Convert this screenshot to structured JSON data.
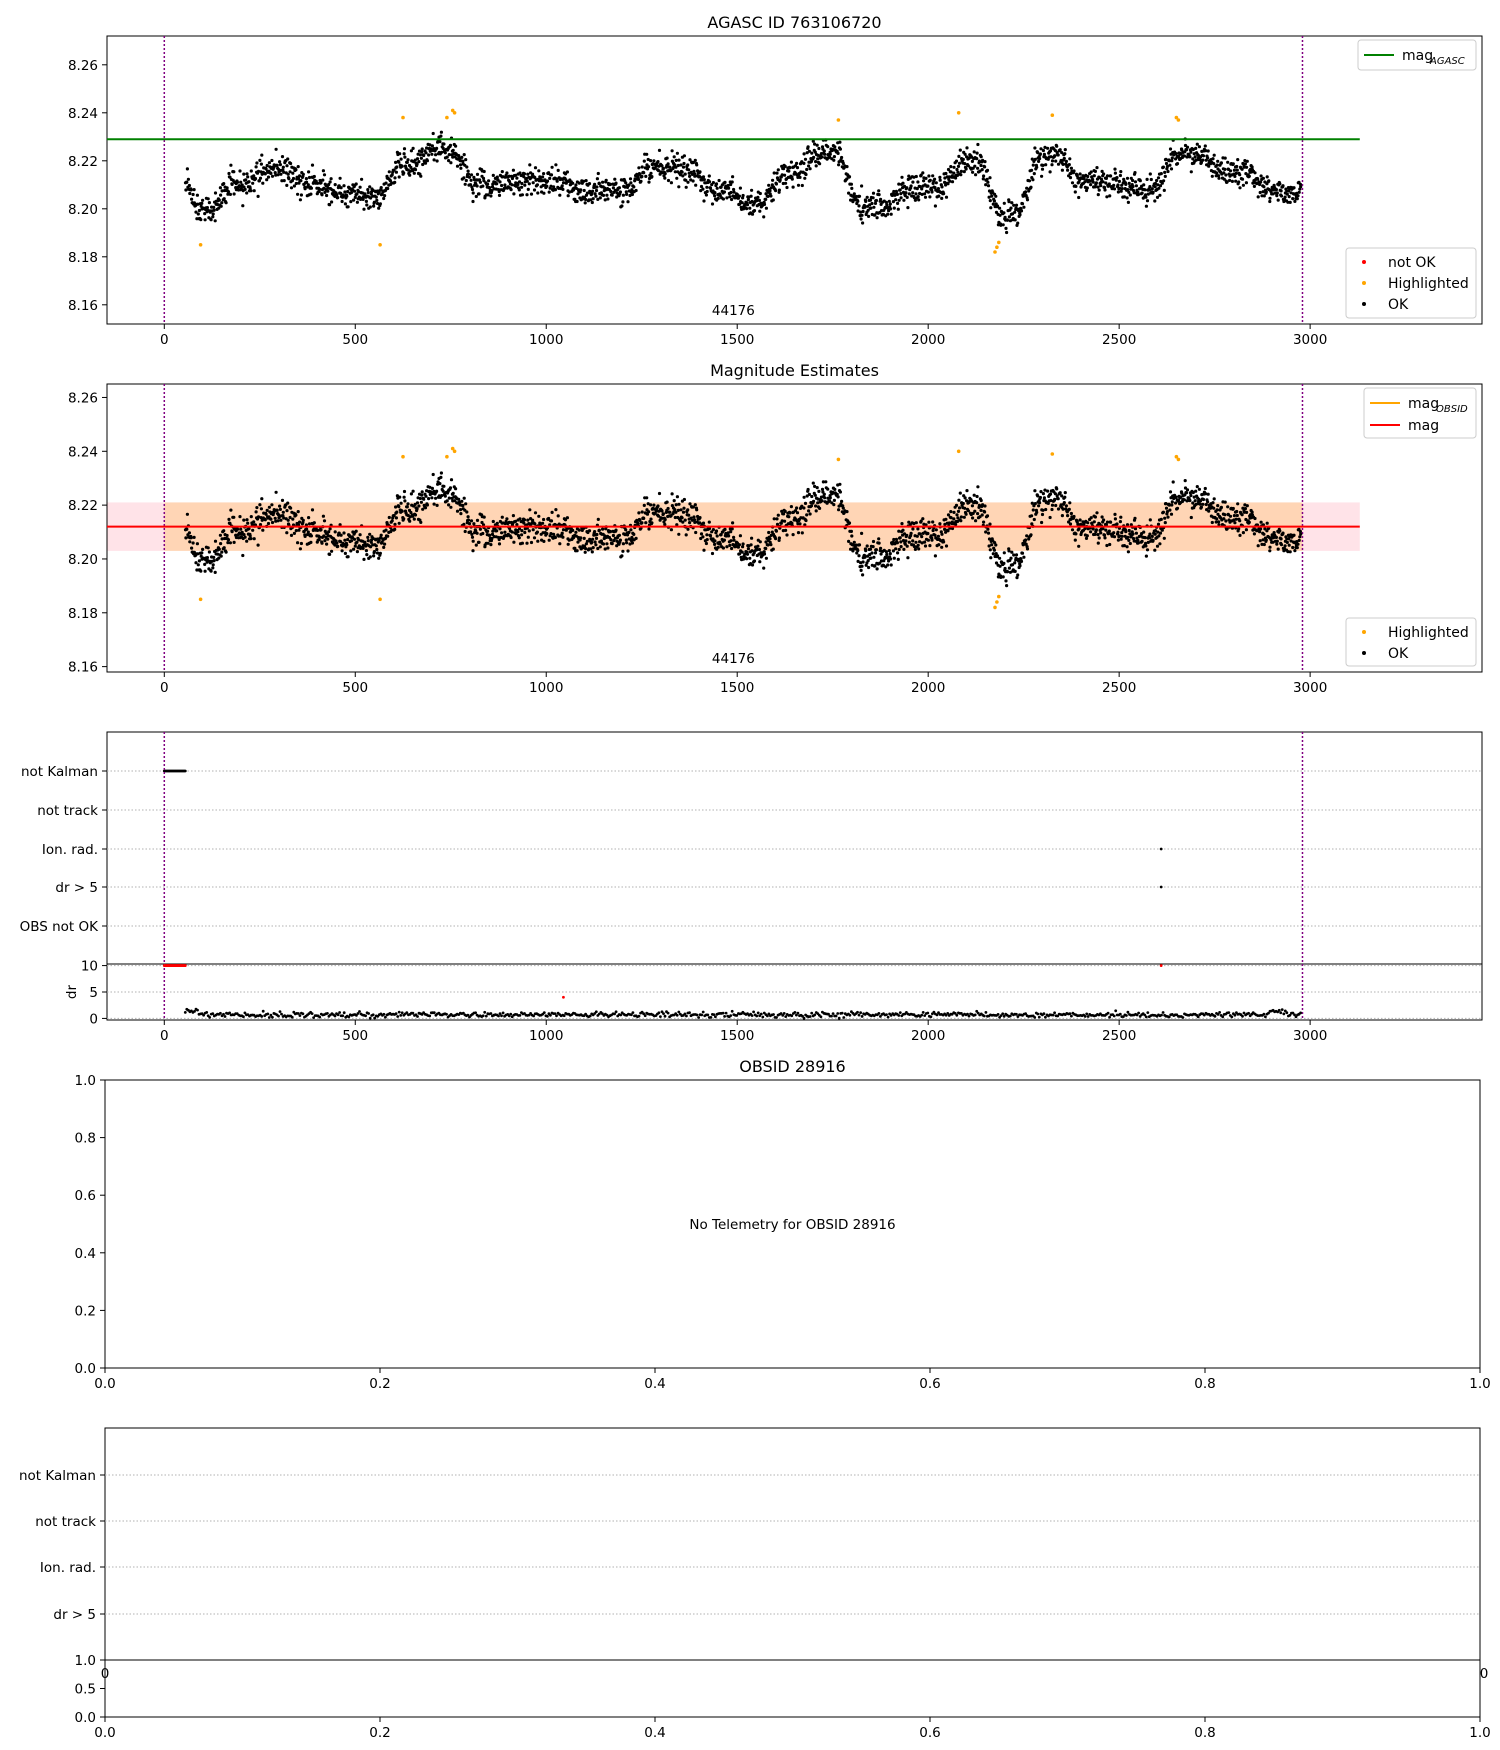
{
  "chart_data": [
    {
      "id": "agasc",
      "type": "scatter",
      "title": "AGASC ID 763106720",
      "xlim": [
        -150,
        3450
      ],
      "ylim": [
        8.152,
        8.272
      ],
      "xticks": [
        0,
        500,
        1000,
        1500,
        2000,
        2500,
        3000
      ],
      "yticks": [
        8.16,
        8.18,
        8.2,
        8.22,
        8.24,
        8.26
      ],
      "ytick_format": 2,
      "vlines": [
        0,
        2980
      ],
      "hline": {
        "name": "mag",
        "sub": "AGASC",
        "value": 8.229,
        "color": "#008000",
        "x_end": 3130
      },
      "annotation": {
        "text": "44176",
        "x": 1490
      },
      "legend_lines": [
        {
          "name": "mag",
          "sub": "AGASC",
          "color": "#008000"
        }
      ],
      "legend_points": [
        {
          "name": "not OK",
          "color": "#ff0000"
        },
        {
          "name": "Highlighted",
          "color": "#ffa500"
        },
        {
          "name": "OK",
          "color": "#000000"
        }
      ],
      "series": {
        "x_range": [
          55,
          2975
        ],
        "baseline": 8.211,
        "noise": 0.0055,
        "segments": [
          {
            "x0": 55,
            "x1": 70,
            "y": 8.211
          },
          {
            "x0": 70,
            "x1": 150,
            "y": 8.2
          },
          {
            "x0": 150,
            "x1": 240,
            "y": 8.21
          },
          {
            "x0": 240,
            "x1": 340,
            "y": 8.217
          },
          {
            "x0": 340,
            "x1": 420,
            "y": 8.21
          },
          {
            "x0": 420,
            "x1": 510,
            "y": 8.207
          },
          {
            "x0": 510,
            "x1": 590,
            "y": 8.205
          },
          {
            "x0": 590,
            "x1": 680,
            "y": 8.218
          },
          {
            "x0": 680,
            "x1": 780,
            "y": 8.225
          },
          {
            "x0": 780,
            "x1": 900,
            "y": 8.21
          },
          {
            "x0": 900,
            "x1": 1060,
            "y": 8.212
          },
          {
            "x0": 1060,
            "x1": 1240,
            "y": 8.208
          },
          {
            "x0": 1240,
            "x1": 1400,
            "y": 8.217
          },
          {
            "x0": 1400,
            "x1": 1500,
            "y": 8.208
          },
          {
            "x0": 1500,
            "x1": 1590,
            "y": 8.201
          },
          {
            "x0": 1590,
            "x1": 1680,
            "y": 8.214
          },
          {
            "x0": 1680,
            "x1": 1790,
            "y": 8.223
          },
          {
            "x0": 1790,
            "x1": 1920,
            "y": 8.201
          },
          {
            "x0": 1920,
            "x1": 2060,
            "y": 8.209
          },
          {
            "x0": 2060,
            "x1": 2160,
            "y": 8.22
          },
          {
            "x0": 2160,
            "x1": 2260,
            "y": 8.197
          },
          {
            "x0": 2260,
            "x1": 2370,
            "y": 8.222
          },
          {
            "x0": 2370,
            "x1": 2520,
            "y": 8.211
          },
          {
            "x0": 2520,
            "x1": 2620,
            "y": 8.208
          },
          {
            "x0": 2620,
            "x1": 2740,
            "y": 8.223
          },
          {
            "x0": 2740,
            "x1": 2860,
            "y": 8.215
          },
          {
            "x0": 2860,
            "x1": 2975,
            "y": 8.207
          }
        ],
        "highlighted": [
          [
            95,
            8.185
          ],
          [
            565,
            8.185
          ],
          [
            625,
            8.238
          ],
          [
            740,
            8.238
          ],
          [
            755,
            8.241
          ],
          [
            760,
            8.24
          ],
          [
            1765,
            8.237
          ],
          [
            2080,
            8.24
          ],
          [
            2175,
            8.182
          ],
          [
            2180,
            8.184
          ],
          [
            2185,
            8.186
          ],
          [
            2325,
            8.239
          ],
          [
            2650,
            8.238
          ],
          [
            2655,
            8.237
          ]
        ]
      }
    },
    {
      "id": "magest",
      "type": "scatter",
      "title": "Magnitude Estimates",
      "xlim": [
        -150,
        3450
      ],
      "ylim": [
        8.158,
        8.265
      ],
      "xticks": [
        0,
        500,
        1000,
        1500,
        2000,
        2500,
        3000
      ],
      "yticks": [
        8.16,
        8.18,
        8.2,
        8.22,
        8.24,
        8.26
      ],
      "ytick_format": 2,
      "vlines": [
        0,
        2980
      ],
      "hline": {
        "name": "mag",
        "value": 8.212,
        "color": "#ff0000",
        "x_start": -150,
        "x_end": 3130
      },
      "bands": [
        {
          "x0": -150,
          "x1": 3130,
          "y0": 8.203,
          "y1": 8.221,
          "color": "#ffc0cb",
          "opacity": 0.45
        },
        {
          "x0": 0,
          "x1": 2980,
          "y0": 8.203,
          "y1": 8.221,
          "color": "#ffa500",
          "opacity": 0.22
        }
      ],
      "annotation": {
        "text": "44176",
        "x": 1490
      },
      "legend_lines": [
        {
          "name": "mag",
          "sub": "OBSID",
          "color": "#ffa500"
        },
        {
          "name": "mag",
          "color": "#ff0000"
        }
      ],
      "legend_points": [
        {
          "name": "Highlighted",
          "color": "#ffa500"
        },
        {
          "name": "OK",
          "color": "#000000"
        }
      ]
    },
    {
      "id": "flags1",
      "type": "scatter",
      "categories": [
        "not Kalman",
        "not track",
        "Ion. rad.",
        "dr > 5",
        "OBS not OK"
      ],
      "xlim": [
        -150,
        3450
      ],
      "vlines": [
        0,
        2980
      ],
      "points": {
        "not Kalman": {
          "x0": 0,
          "x1": 55
        },
        "Ion. rad.": [
          2610
        ],
        "dr > 5": [
          2610
        ]
      }
    },
    {
      "id": "dr1",
      "type": "scatter",
      "ylabel": "dr",
      "xlim": [
        -150,
        3450
      ],
      "ylim": [
        -0.3,
        10.3
      ],
      "yticks": [
        0,
        5,
        10
      ],
      "ytick_format": 0,
      "xticks": [
        0,
        500,
        1000,
        1500,
        2000,
        2500,
        3000
      ],
      "vlines": [
        0,
        2980
      ],
      "red_points": [
        [
          1045,
          4.0
        ],
        [
          2610,
          10.0
        ]
      ],
      "red_block": {
        "x0": 0,
        "x1": 55,
        "y": 10
      }
    },
    {
      "id": "empty",
      "type": "scatter",
      "title": "OBSID 28916",
      "message": "No Telemetry for OBSID 28916",
      "xlim": [
        0,
        1
      ],
      "ylim": [
        0,
        1
      ],
      "xticks": [
        0.0,
        0.2,
        0.4,
        0.6,
        0.8,
        1.0
      ],
      "yticks": [
        0.0,
        0.2,
        0.4,
        0.6,
        0.8,
        1.0
      ]
    },
    {
      "id": "flags2",
      "type": "scatter",
      "categories": [
        "not Kalman",
        "not track",
        "Ion. rad.",
        "dr > 5"
      ],
      "xlim": [
        0,
        1
      ]
    },
    {
      "id": "dr2",
      "type": "scatter",
      "xlim": [
        0,
        1
      ],
      "ylim": [
        0,
        1
      ],
      "xticks": [
        0.0,
        0.2,
        0.4,
        0.6,
        0.8,
        1.0
      ],
      "yticks": [
        0.0,
        0.5,
        1.0
      ],
      "overlap_labels": [
        "0",
        "0"
      ]
    }
  ]
}
